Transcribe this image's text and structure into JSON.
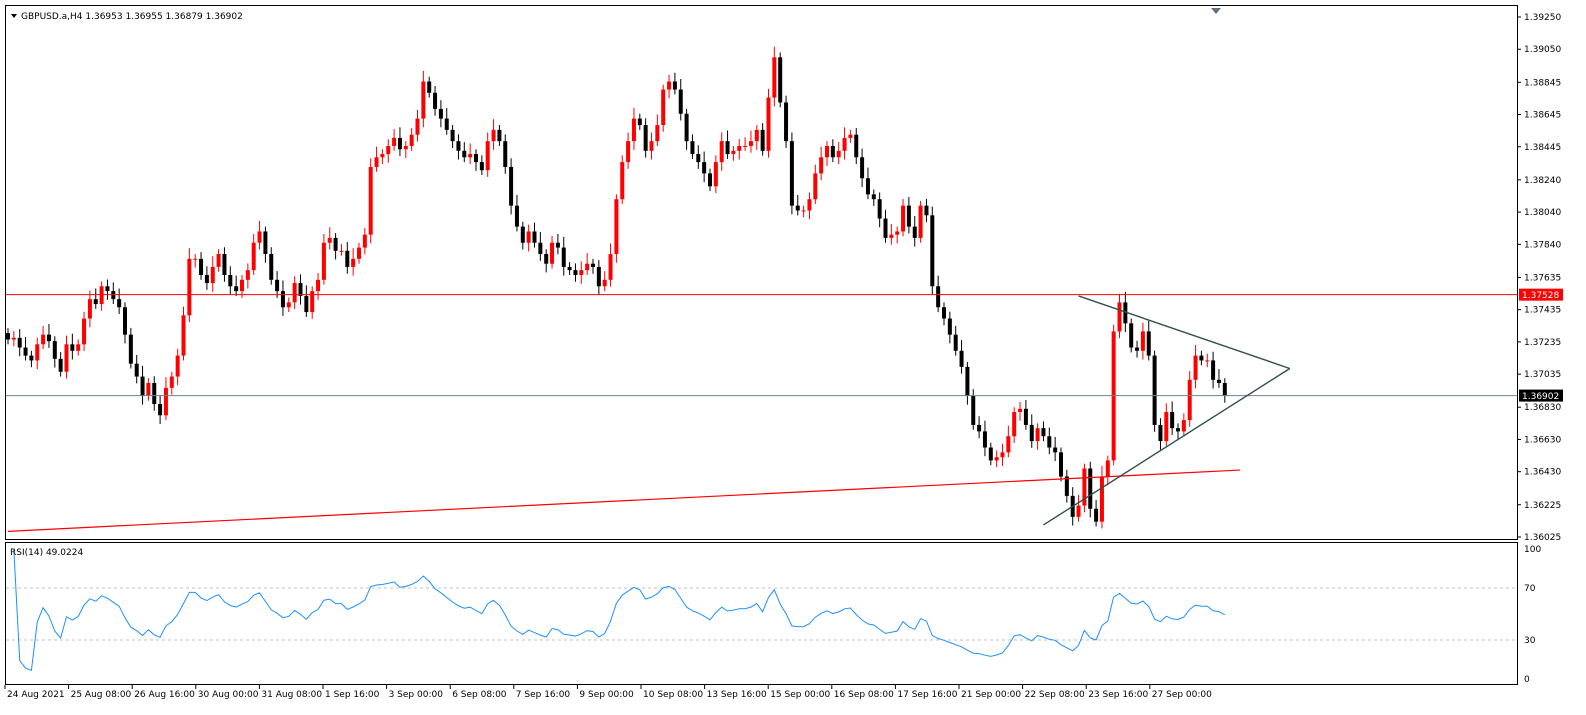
{
  "header": {
    "symbol_info": "GBPUSD.a,H4  1.36953 1.36955 1.36879 1.36902"
  },
  "indicator": {
    "label": "RSI(14) 49.0224"
  },
  "colors": {
    "bull": "#ff0000",
    "bear": "#000000",
    "horizontal_line": "#ff0000",
    "trendline": "#ff0000",
    "triangle": "#2f4f4f",
    "bid_line": "#708090",
    "rsi_line": "#1e90ff",
    "rsi_levels": "#c0c0c0"
  },
  "chart_data": [
    {
      "type": "candlestick",
      "symbol": "GBPUSD.a",
      "timeframe": "H4",
      "ylim": [
        1.36025,
        1.3925
      ],
      "y_ticks": [
        "1.39250",
        "1.39050",
        "1.38845",
        "1.38645",
        "1.38445",
        "1.38240",
        "1.38040",
        "1.37840",
        "1.37635",
        "1.37435",
        "1.37235",
        "1.37035",
        "1.36830",
        "1.36630",
        "1.36430",
        "1.36225",
        "1.36025"
      ],
      "x_ticks": [
        "24 Aug 2021",
        "25 Aug 08:00",
        "26 Aug 16:00",
        "30 Aug 00:00",
        "31 Aug 08:00",
        "1 Sep 16:00",
        "3 Sep 00:00",
        "6 Sep 08:00",
        "7 Sep 16:00",
        "9 Sep 00:00",
        "10 Sep 08:00",
        "13 Sep 16:00",
        "15 Sep 00:00",
        "16 Sep 08:00",
        "17 Sep 16:00",
        "21 Sep 00:00",
        "22 Sep 08:00",
        "23 Sep 16:00",
        "27 Sep 00:00"
      ],
      "horizontal_level": {
        "value": 1.37528,
        "label": "1.37528"
      },
      "current_price": {
        "value": 1.36902,
        "label": "1.36902"
      },
      "trendline": {
        "start": 1.3606,
        "end": 1.3644
      },
      "triangle": {
        "top": 1.3752,
        "bottom": 1.361,
        "apex": 1.3707
      },
      "closes": [
        1.3725,
        1.3726,
        1.372,
        1.3715,
        1.3712,
        1.3722,
        1.3728,
        1.3724,
        1.3713,
        1.3705,
        1.3722,
        1.3718,
        1.3722,
        1.3738,
        1.375,
        1.3747,
        1.3758,
        1.3755,
        1.375,
        1.3745,
        1.3728,
        1.371,
        1.3702,
        1.369,
        1.3698,
        1.3685,
        1.3678,
        1.3695,
        1.3702,
        1.3715,
        1.374,
        1.3775,
        1.3775,
        1.3765,
        1.376,
        1.377,
        1.3778,
        1.3765,
        1.3758,
        1.3755,
        1.3762,
        1.3768,
        1.3785,
        1.3792,
        1.3778,
        1.3762,
        1.3755,
        1.3745,
        1.3748,
        1.376,
        1.3752,
        1.3742,
        1.3755,
        1.3762,
        1.3785,
        1.3788,
        1.378,
        1.378,
        1.377,
        1.3775,
        1.3782,
        1.379,
        1.3832,
        1.3838,
        1.384,
        1.3845,
        1.385,
        1.3843,
        1.3845,
        1.3852,
        1.3862,
        1.3885,
        1.3878,
        1.3868,
        1.3862,
        1.3855,
        1.3848,
        1.3842,
        1.3838,
        1.384,
        1.3835,
        1.383,
        1.3848,
        1.3855,
        1.3848,
        1.3832,
        1.3808,
        1.3795,
        1.3785,
        1.3792,
        1.3785,
        1.3778,
        1.3772,
        1.3785,
        1.3782,
        1.377,
        1.3768,
        1.3765,
        1.3768,
        1.3772,
        1.377,
        1.3758,
        1.3762,
        1.3778,
        1.3812,
        1.3835,
        1.3848,
        1.3862,
        1.3858,
        1.3842,
        1.3848,
        1.3858,
        1.388,
        1.3885,
        1.388,
        1.3865,
        1.3848,
        1.384,
        1.3835,
        1.3828,
        1.382,
        1.3835,
        1.3848,
        1.384,
        1.3842,
        1.3845,
        1.3845,
        1.3848,
        1.3855,
        1.3842,
        1.3875,
        1.39,
        1.3872,
        1.3848,
        1.3808,
        1.3805,
        1.3805,
        1.3812,
        1.3828,
        1.3838,
        1.3845,
        1.3838,
        1.3842,
        1.385,
        1.3852,
        1.3838,
        1.3825,
        1.3815,
        1.3812,
        1.38,
        1.3788,
        1.379,
        1.3792,
        1.3808,
        1.3795,
        1.3788,
        1.3808,
        1.3802,
        1.3758,
        1.3745,
        1.3738,
        1.3728,
        1.3718,
        1.3708,
        1.369,
        1.3672,
        1.3668,
        1.3658,
        1.365,
        1.3652,
        1.3655,
        1.3665,
        1.368,
        1.3682,
        1.3672,
        1.3662,
        1.367,
        1.3665,
        1.3658,
        1.3655,
        1.364,
        1.3628,
        1.3615,
        1.3622,
        1.3645,
        1.362,
        1.3612,
        1.364,
        1.365,
        1.373,
        1.3748,
        1.3735,
        1.372,
        1.3718,
        1.373,
        1.3715,
        1.3672,
        1.3662,
        1.368,
        1.367,
        1.3668,
        1.3675,
        1.37,
        1.3715,
        1.3712,
        1.3712,
        1.37,
        1.3698,
        1.369
      ],
      "rsi": {
        "label": "RSI(14) 49.0224",
        "value": 49.0224,
        "ylim": [
          0,
          100
        ],
        "levels": [
          70,
          30
        ],
        "y_ticks": [
          "100",
          "70",
          "30",
          "0"
        ]
      }
    }
  ]
}
